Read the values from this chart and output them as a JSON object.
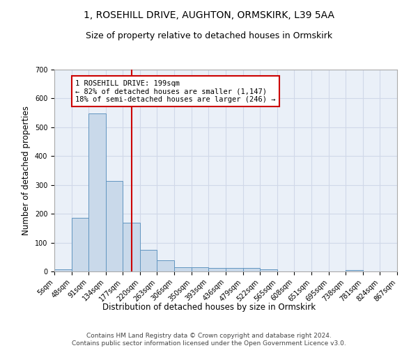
{
  "title": "1, ROSEHILL DRIVE, AUGHTON, ORMSKIRK, L39 5AA",
  "subtitle": "Size of property relative to detached houses in Ormskirk",
  "xlabel": "Distribution of detached houses by size in Ormskirk",
  "ylabel": "Number of detached properties",
  "footer_line1": "Contains HM Land Registry data © Crown copyright and database right 2024.",
  "footer_line2": "Contains public sector information licensed under the Open Government Licence v3.0.",
  "bin_edges": [
    5,
    48,
    91,
    134,
    177,
    220,
    263,
    306,
    350,
    393,
    436,
    479,
    522,
    565,
    608,
    651,
    695,
    738,
    781,
    824,
    867
  ],
  "bin_values": [
    8,
    186,
    547,
    314,
    169,
    75,
    38,
    15,
    14,
    11,
    11,
    11,
    7,
    0,
    0,
    0,
    0,
    5,
    0,
    0
  ],
  "bar_facecolor": "#c9d9ea",
  "bar_edgecolor": "#6195c0",
  "subject_size": 199,
  "subject_line_color": "#cc0000",
  "annotation_line1": "1 ROSEHILL DRIVE: 199sqm",
  "annotation_line2": "← 82% of detached houses are smaller (1,147)",
  "annotation_line3": "18% of semi-detached houses are larger (246) →",
  "annotation_box_edgecolor": "#cc0000",
  "annotation_box_facecolor": "#ffffff",
  "ylim": [
    0,
    700
  ],
  "yticks": [
    0,
    100,
    200,
    300,
    400,
    500,
    600,
    700
  ],
  "grid_color": "#d0d8e8",
  "plot_background": "#eaf0f8",
  "title_fontsize": 10,
  "subtitle_fontsize": 9,
  "label_fontsize": 8.5,
  "tick_fontsize": 7,
  "footer_fontsize": 6.5,
  "annotation_fontsize": 7.5
}
